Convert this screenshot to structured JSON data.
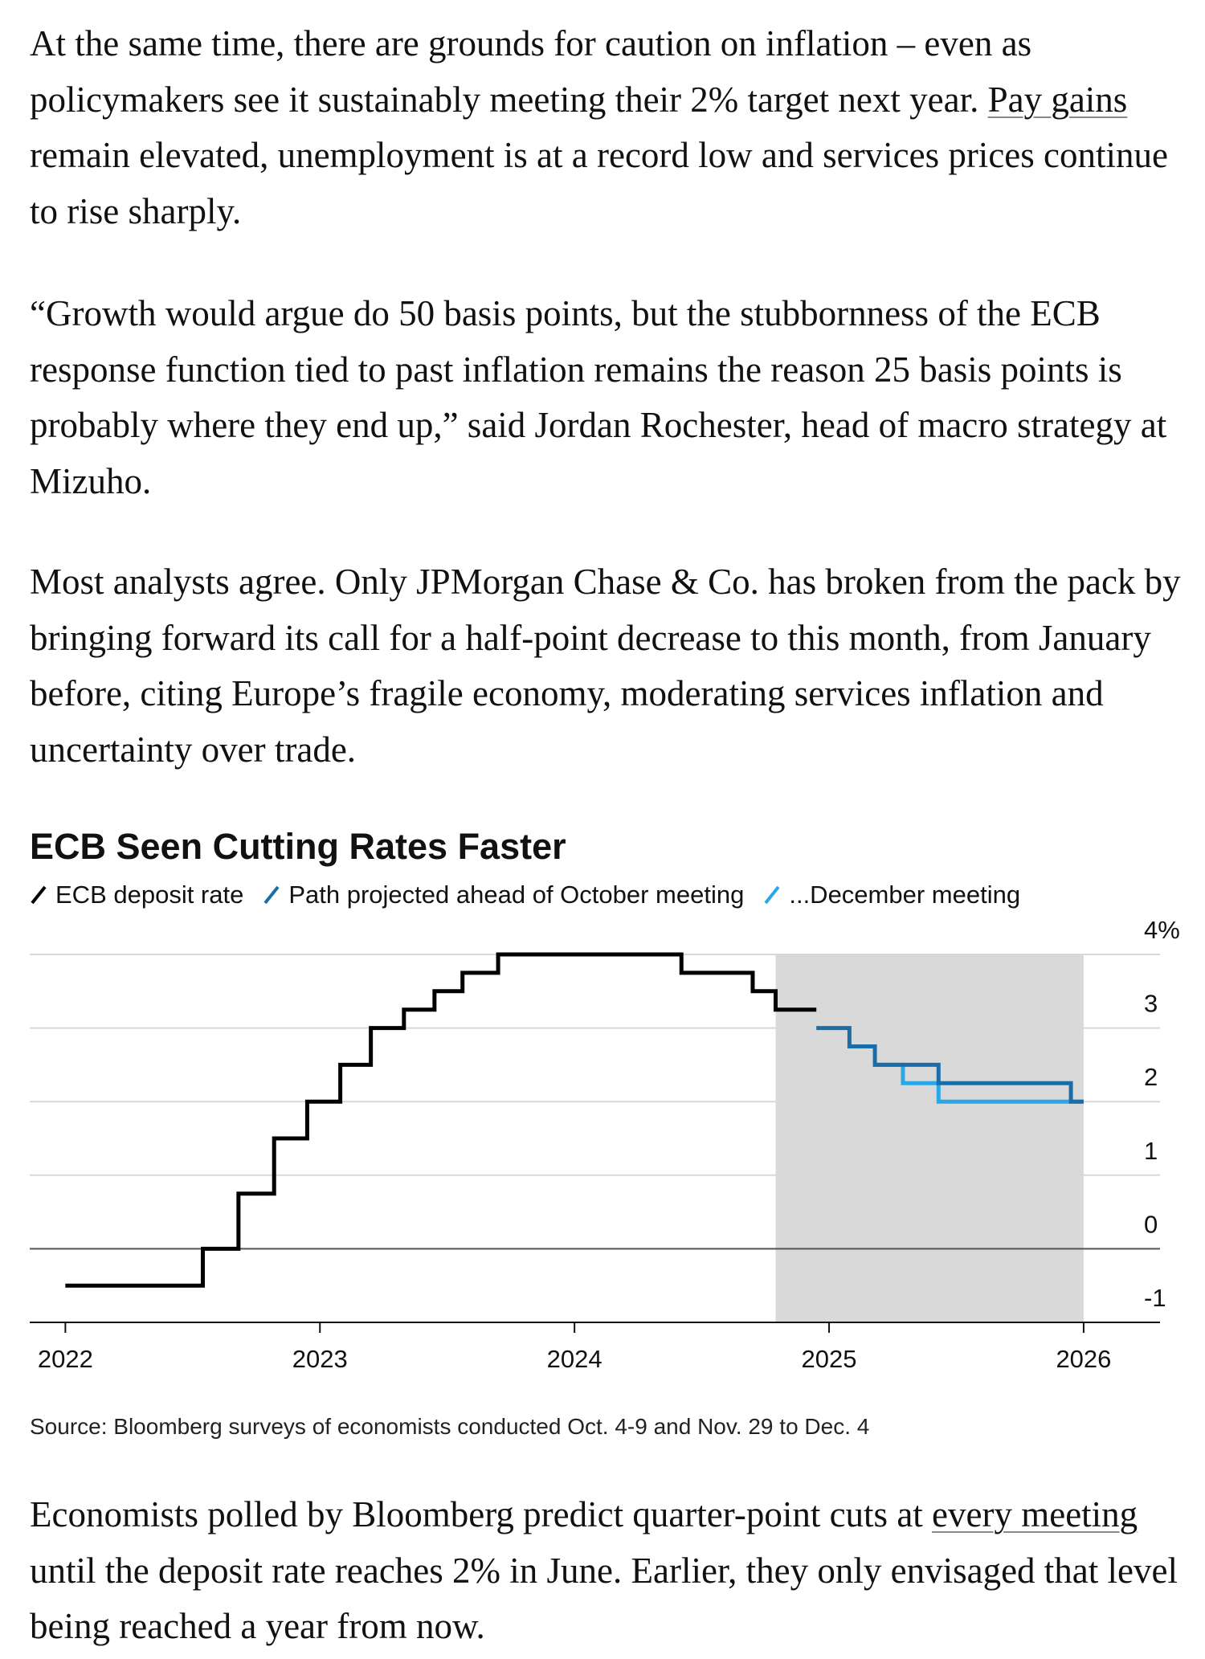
{
  "paragraphs": [
    {
      "segments": [
        {
          "text": "At the same time, there are grounds for caution on inflation – even as policymakers see it sustainably meeting their 2% target next year. ",
          "link": false
        },
        {
          "text": "Pay gains",
          "link": true
        },
        {
          "text": " remain elevated, unemployment is at a record low and services prices continue to rise sharply.",
          "link": false
        }
      ]
    },
    {
      "segments": [
        {
          "text": "“Growth would argue do 50 basis points, but the stubbornness of the ECB response function tied to past inflation remains the reason 25 basis points is probably where they end up,” said Jordan Rochester, head of macro strategy at Mizuho.",
          "link": false
        }
      ]
    },
    {
      "segments": [
        {
          "text": "Most analysts agree. Only JPMorgan Chase & Co. has broken from the pack by bringing forward its call for a half-point decrease to this month, from January before, citing Europe’s fragile economy, moderating services inflation and uncertainty over trade.",
          "link": false
        }
      ]
    },
    {
      "segments": [
        {
          "text": "Economists polled by Bloomberg predict quarter-point cuts at ",
          "link": false
        },
        {
          "text": "every meeting",
          "link": true
        },
        {
          "text": " until the deposit rate reaches 2% in June. Earlier, they only envisaged that level being reached a year from now.",
          "link": false
        }
      ]
    }
  ],
  "chart_data": {
    "type": "line",
    "step": "post",
    "title": "ECB Seen Cutting Rates Faster",
    "source": "Source: Bloomberg surveys of economists conducted Oct. 4-9 and Nov. 29 to Dec. 4",
    "xlim": [
      2021.86,
      2026.3
    ],
    "xticks": [
      2022,
      2023,
      2024,
      2025,
      2026
    ],
    "ylim": [
      -1,
      4
    ],
    "yticks": [
      -1,
      0,
      1,
      2,
      3,
      {
        "value": 4,
        "label": "4%"
      }
    ],
    "grid": true,
    "shaded_range": [
      2024.79,
      2026.0
    ],
    "series": [
      {
        "name": "ECB deposit rate",
        "color": "#000000",
        "x": [
          2022.0,
          2022.54,
          2022.68,
          2022.82,
          2022.95,
          2023.08,
          2023.2,
          2023.33,
          2023.45,
          2023.56,
          2023.7,
          2024.42,
          2024.7,
          2024.79,
          2024.95
        ],
        "values": [
          -0.5,
          0,
          0.75,
          1.5,
          2,
          2.5,
          3,
          3.25,
          3.5,
          3.75,
          4,
          3.75,
          3.5,
          3.25,
          3.25
        ]
      },
      {
        "name": "Path projected ahead of October meeting",
        "color": "#1a6ea8",
        "x": [
          2024.95,
          2025.08,
          2025.18,
          2025.43,
          2025.95,
          2026.0
        ],
        "values": [
          3.0,
          2.75,
          2.5,
          2.25,
          2.0,
          2.0
        ]
      },
      {
        "name": "...December meeting",
        "color": "#2aa7e6",
        "x": [
          2025.18,
          2025.29,
          2025.43,
          2026.0
        ],
        "values": [
          2.5,
          2.25,
          2.0,
          2.0
        ]
      }
    ]
  }
}
